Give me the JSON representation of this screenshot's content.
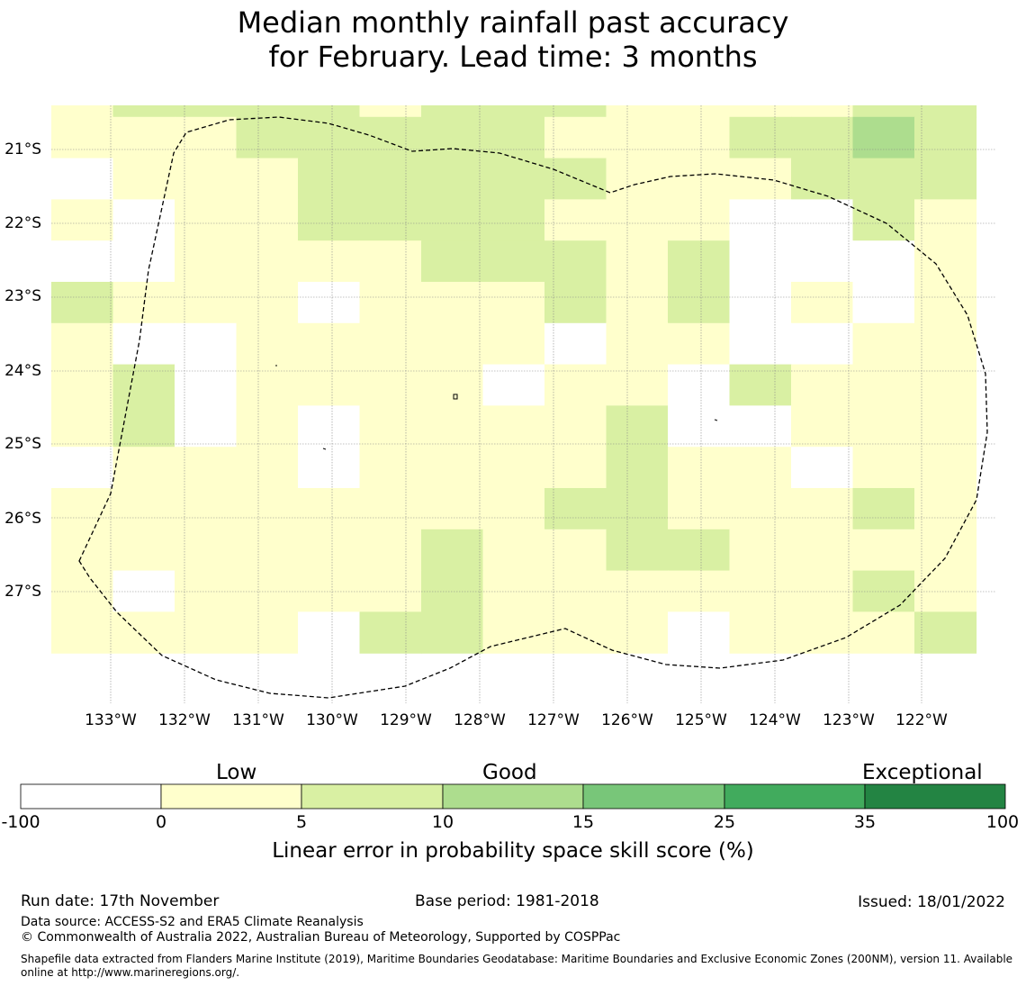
{
  "title": {
    "line1": "Median monthly rainfall past accuracy",
    "line2": "for February. Lead time: 3 months"
  },
  "map": {
    "lat_labels": [
      "21°S",
      "22°S",
      "23°S",
      "24°S",
      "25°S",
      "26°S",
      "27°S"
    ],
    "lon_labels": [
      "133°W",
      "132°W",
      "131°W",
      "130°W",
      "129°W",
      "128°W",
      "127°W",
      "126°W",
      "125°W",
      "124°W",
      "123°W",
      "122°W"
    ],
    "legend_category_codes": {
      "0": "-100 to 0",
      "1": "0 to 5",
      "2": "5 to 10",
      "3": "10 to 15"
    },
    "grid_rows": [
      "122221222111122",
      "111222221112232",
      "011122222111222",
      "101122221110021",
      "001111222120001",
      "211101112120101",
      "100111110110011",
      "120111101102111",
      "120101111200111",
      "011101111211011",
      "111111112211121",
      "111111211221111",
      "101111211111121",
      "111102211101112"
    ]
  },
  "colorbar": {
    "category_labels": {
      "low": "Low",
      "good": "Good",
      "exceptional": "Exceptional"
    },
    "boundaries": [
      "-100",
      "0",
      "5",
      "10",
      "15",
      "25",
      "35",
      "100"
    ],
    "colors": [
      "#ffffff",
      "#ffffcc",
      "#d9f0a3",
      "#addd8e",
      "#78c679",
      "#41ab5d",
      "#238443"
    ],
    "title": "Linear error in probability space skill score (%)"
  },
  "footer": {
    "run_date": "Run date: 17th November",
    "base_period": "Base period: 1981-2018",
    "issued": "Issued: 18/01/2022",
    "data_source": "Data source: ACCESS-S2 and ERA5 Climate Reanalysis",
    "copyright": "© Commonwealth of Australia 2022, Australian Bureau of Meteorology, Supported by COSPPac",
    "shapefile_line1": "Shapefile data extracted from Flanders Marine Institute (2019), Maritime Boundaries Geodatabase: Maritime Boundaries and Exclusive Economic Zones (200NM), version 11. Available",
    "shapefile_line2": "online at http://www.marineregions.org/."
  },
  "colors": {
    "cat0": "#ffffff",
    "cat1": "#ffffcc",
    "cat2": "#d9f0a3",
    "cat3": "#addd8e"
  }
}
